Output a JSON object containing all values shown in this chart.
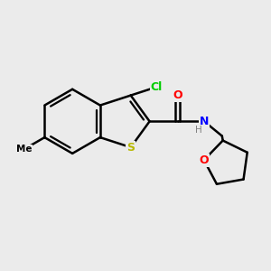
{
  "background_color": "#ebebeb",
  "atom_colors": {
    "Cl": "#00cc00",
    "S": "#b8b800",
    "N": "#0000ff",
    "O": "#ff0000",
    "C": "#000000",
    "H": "#808080"
  },
  "bond_color": "#000000",
  "bond_width": 1.8,
  "fig_width": 3.0,
  "fig_height": 3.0,
  "dpi": 100
}
